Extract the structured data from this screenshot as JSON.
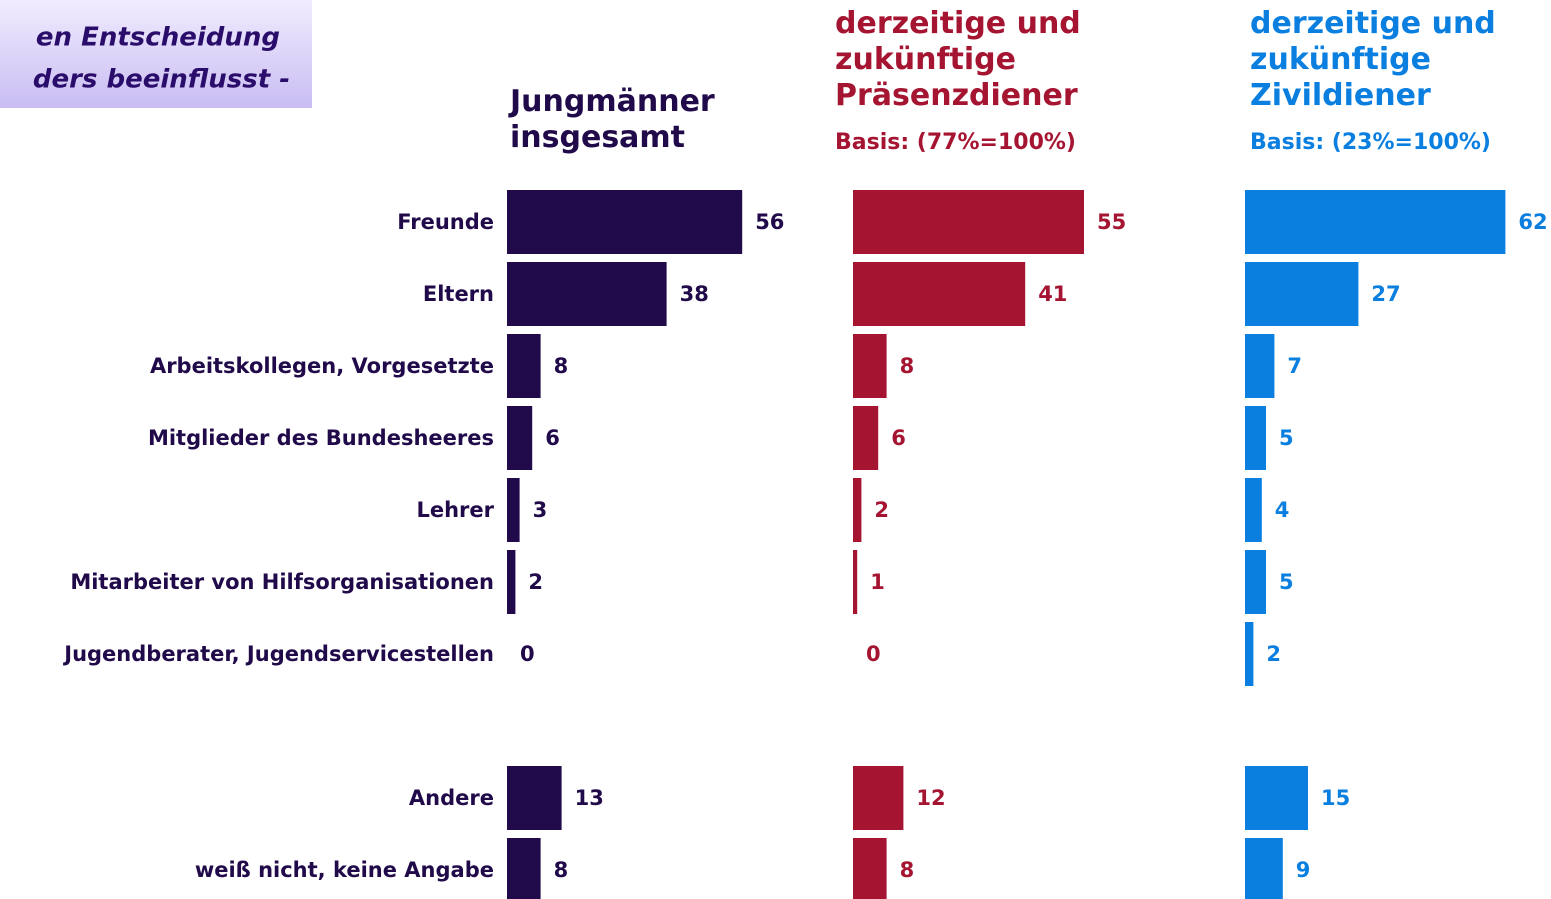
{
  "header": {
    "lines": [
      "en Entscheidung",
      "ders beeinflusst -"
    ]
  },
  "chart_data": {
    "type": "bar",
    "orientation": "horizontal",
    "categories": [
      "Freunde",
      "Eltern",
      "Arbeitskollegen, Vorgesetzte",
      "Mitglieder des Bundesheeres",
      "Lehrer",
      "Mitarbeiter von Hilfsorganisationen",
      "Jugendberater, Jugendservicestellen",
      null,
      "Andere",
      "weiß nicht, keine Angabe"
    ],
    "series": [
      {
        "name": "Jungmänner insgesamt",
        "color": "#200a4a",
        "values": [
          56,
          38,
          8,
          6,
          3,
          2,
          0,
          null,
          13,
          8
        ]
      },
      {
        "name": "derzeitige und zukünftige Präsenzdiener",
        "subtitle": "Basis: (77%=100%)",
        "color": "#a51531",
        "values": [
          55,
          41,
          8,
          6,
          2,
          1,
          0,
          null,
          12,
          8
        ]
      },
      {
        "name": "derzeitige und zukünftige Zivildiener",
        "subtitle": "Basis: (23%=100%)",
        "color": "#0a7fe0",
        "values": [
          62,
          27,
          7,
          5,
          4,
          5,
          2,
          null,
          15,
          9
        ]
      }
    ]
  }
}
